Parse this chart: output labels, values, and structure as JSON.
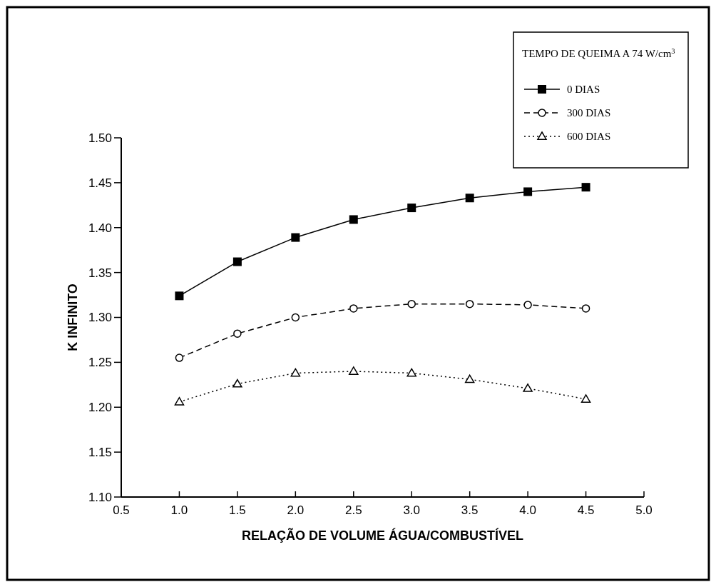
{
  "chart_data": {
    "type": "line",
    "xlabel": "RELAÇÃO DE VOLUME ÁGUA/COMBUSTÍVEL",
    "ylabel": "K INFINITO",
    "legend_title": "TEMPO DE QUEIMA A 74 W/cm$^{3}$",
    "x": [
      1.0,
      1.5,
      2.0,
      2.5,
      3.0,
      3.5,
      4.0,
      4.5
    ],
    "series": [
      {
        "name": "0 DIAS",
        "color": "#000000",
        "marker": "square",
        "line_style": "solid",
        "values": [
          1.324,
          1.362,
          1.389,
          1.409,
          1.422,
          1.433,
          1.44,
          1.445
        ]
      },
      {
        "name": "300 DIAS",
        "color": "#000000",
        "marker": "circle",
        "line_style": "dashed",
        "values": [
          1.255,
          1.282,
          1.3,
          1.31,
          1.315,
          1.315,
          1.314,
          1.31
        ]
      },
      {
        "name": "600 DIAS",
        "color": "#000000",
        "marker": "triangle",
        "line_style": "dotted",
        "values": [
          1.206,
          1.226,
          1.238,
          1.24,
          1.238,
          1.231,
          1.221,
          1.209
        ]
      }
    ],
    "xlim": [
      0.5,
      5.0
    ],
    "xticks": [
      {
        "value": 0.5,
        "label": "0.5"
      },
      {
        "value": 1,
        "label": "1.0"
      },
      {
        "value": 1.5,
        "label": "1.5"
      },
      {
        "value": 2,
        "label": "2.0"
      },
      {
        "value": 2.5,
        "label": "2.5"
      },
      {
        "value": 3,
        "label": "3.0"
      },
      {
        "value": 3.5,
        "label": "3.5"
      },
      {
        "value": 4,
        "label": "4.0"
      },
      {
        "value": 4.5,
        "label": "4.5"
      },
      {
        "value": 5,
        "label": "5.0"
      }
    ],
    "ylim": [
      1.1,
      1.5
    ],
    "yticks": [
      {
        "value": 1.1,
        "label": "1.10"
      },
      {
        "value": 1.15,
        "label": "1.15"
      },
      {
        "value": 1.2,
        "label": "1.20"
      },
      {
        "value": 1.25,
        "label": "1.25"
      },
      {
        "value": 1.3,
        "label": "1.30"
      },
      {
        "value": 1.35,
        "label": "1.35"
      },
      {
        "value": 1.4,
        "label": "1.40"
      },
      {
        "value": 1.45,
        "label": "1.45"
      },
      {
        "value": 1.5,
        "label": "1.50"
      }
    ],
    "grid": false,
    "legend": "top right"
  }
}
